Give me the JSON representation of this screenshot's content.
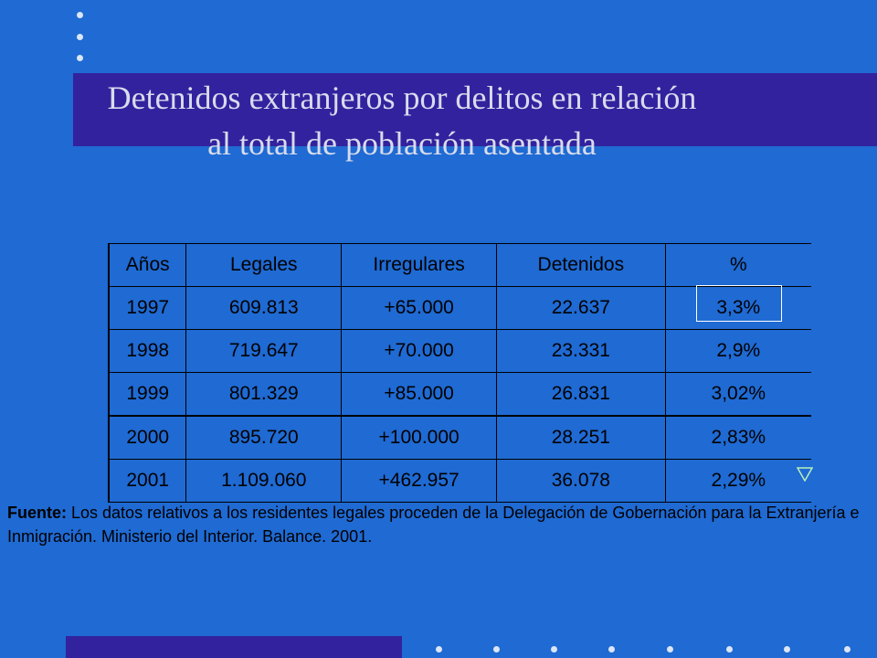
{
  "slide": {
    "title_line1": "Detenidos extranjeros por delitos en relación",
    "title_line2": "al total de población asentada",
    "colors": {
      "background": "#1f6ad3",
      "band": "#33229e",
      "title_text": "#d7dcec",
      "bullets": "#dbe6f7"
    }
  },
  "table": {
    "headers": [
      "Años",
      "Legales",
      "Irregulares",
      "Detenidos",
      "%"
    ],
    "rows": [
      [
        "1997",
        "609.813",
        "+65.000",
        "22.637",
        "3,3%"
      ],
      [
        "1998",
        "719.647",
        "+70.000",
        "23.331",
        "2,9%"
      ],
      [
        "1999",
        "801.329",
        "+85.000",
        "26.831",
        "3,02%"
      ],
      [
        "2000",
        "895.720",
        "+100.000",
        "28.251",
        "2,83%"
      ],
      [
        "2001",
        "1.109.060",
        "+462.957",
        "36.078",
        "2,29%"
      ]
    ]
  },
  "source": {
    "label": "Fuente:",
    "text": "Los datos relativos a los residentes legales proceden de la Delegación de Gobernación para la Extranjería e Inmigración. Ministerio del Interior. Balance. 2001."
  },
  "icons": {
    "marker": "down-triangle-icon"
  }
}
